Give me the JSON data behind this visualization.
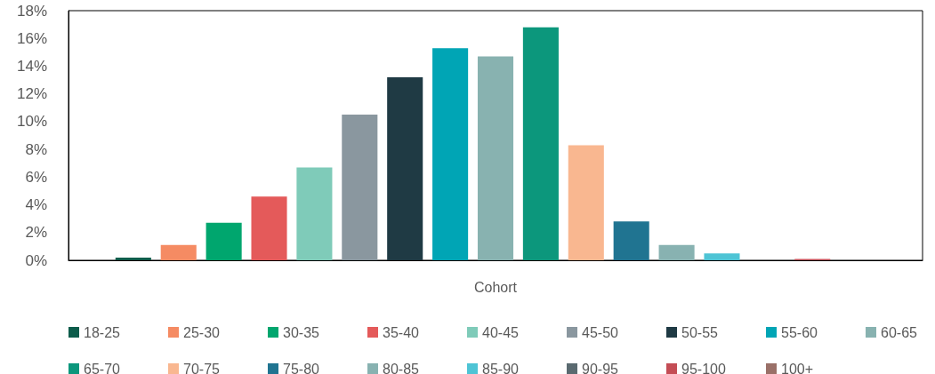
{
  "chart_data": {
    "type": "bar",
    "xlabel": "Cohort",
    "categories": [
      null
    ],
    "series": [
      {
        "name": "18-25",
        "color": "#0d5c4b",
        "values": [
          0.2
        ]
      },
      {
        "name": "25-30",
        "color": "#f58b63",
        "values": [
          1.1
        ]
      },
      {
        "name": "30-35",
        "color": "#00a66e",
        "values": [
          2.7
        ]
      },
      {
        "name": "35-40",
        "color": "#e45a5a",
        "values": [
          4.6
        ]
      },
      {
        "name": "40-45",
        "color": "#7fcbb9",
        "values": [
          6.7
        ]
      },
      {
        "name": "45-50",
        "color": "#8a979f",
        "values": [
          10.5
        ]
      },
      {
        "name": "50-55",
        "color": "#1f3a44",
        "values": [
          13.2
        ]
      },
      {
        "name": "55-60",
        "color": "#00a5b5",
        "values": [
          15.3
        ]
      },
      {
        "name": "60-65",
        "color": "#88b2b0",
        "values": [
          14.7
        ]
      },
      {
        "name": "65-70",
        "color": "#0c977c",
        "values": [
          16.8
        ]
      },
      {
        "name": "70-75",
        "color": "#f9b790",
        "values": [
          8.3
        ]
      },
      {
        "name": "75-80",
        "color": "#207491",
        "values": [
          2.8
        ]
      },
      {
        "name": "80-85",
        "color": "#88b2b1",
        "values": [
          1.1
        ]
      },
      {
        "name": "85-90",
        "color": "#4ec4d5",
        "values": [
          0.5
        ]
      },
      {
        "name": "90-95",
        "color": "#5a6a70",
        "values": [
          0
        ]
      },
      {
        "name": "95-100",
        "color": "#c44d55",
        "values": [
          0.1
        ]
      },
      {
        "name": "100+",
        "color": "#9a7068",
        "values": [
          0
        ]
      }
    ],
    "ylim": [
      0,
      18
    ],
    "yticks": [
      {
        "value": 0,
        "label": "0%"
      },
      {
        "value": 2,
        "label": "2%"
      },
      {
        "value": 4,
        "label": "4%"
      },
      {
        "value": 6,
        "label": "6%"
      },
      {
        "value": 8,
        "label": "8%"
      },
      {
        "value": 10,
        "label": "10%"
      },
      {
        "value": 12,
        "label": "12%"
      },
      {
        "value": 14,
        "label": "14%"
      },
      {
        "value": 16,
        "label": "16%"
      },
      {
        "value": 18,
        "label": "18%"
      }
    ],
    "grid": false,
    "legend": "bottom"
  }
}
